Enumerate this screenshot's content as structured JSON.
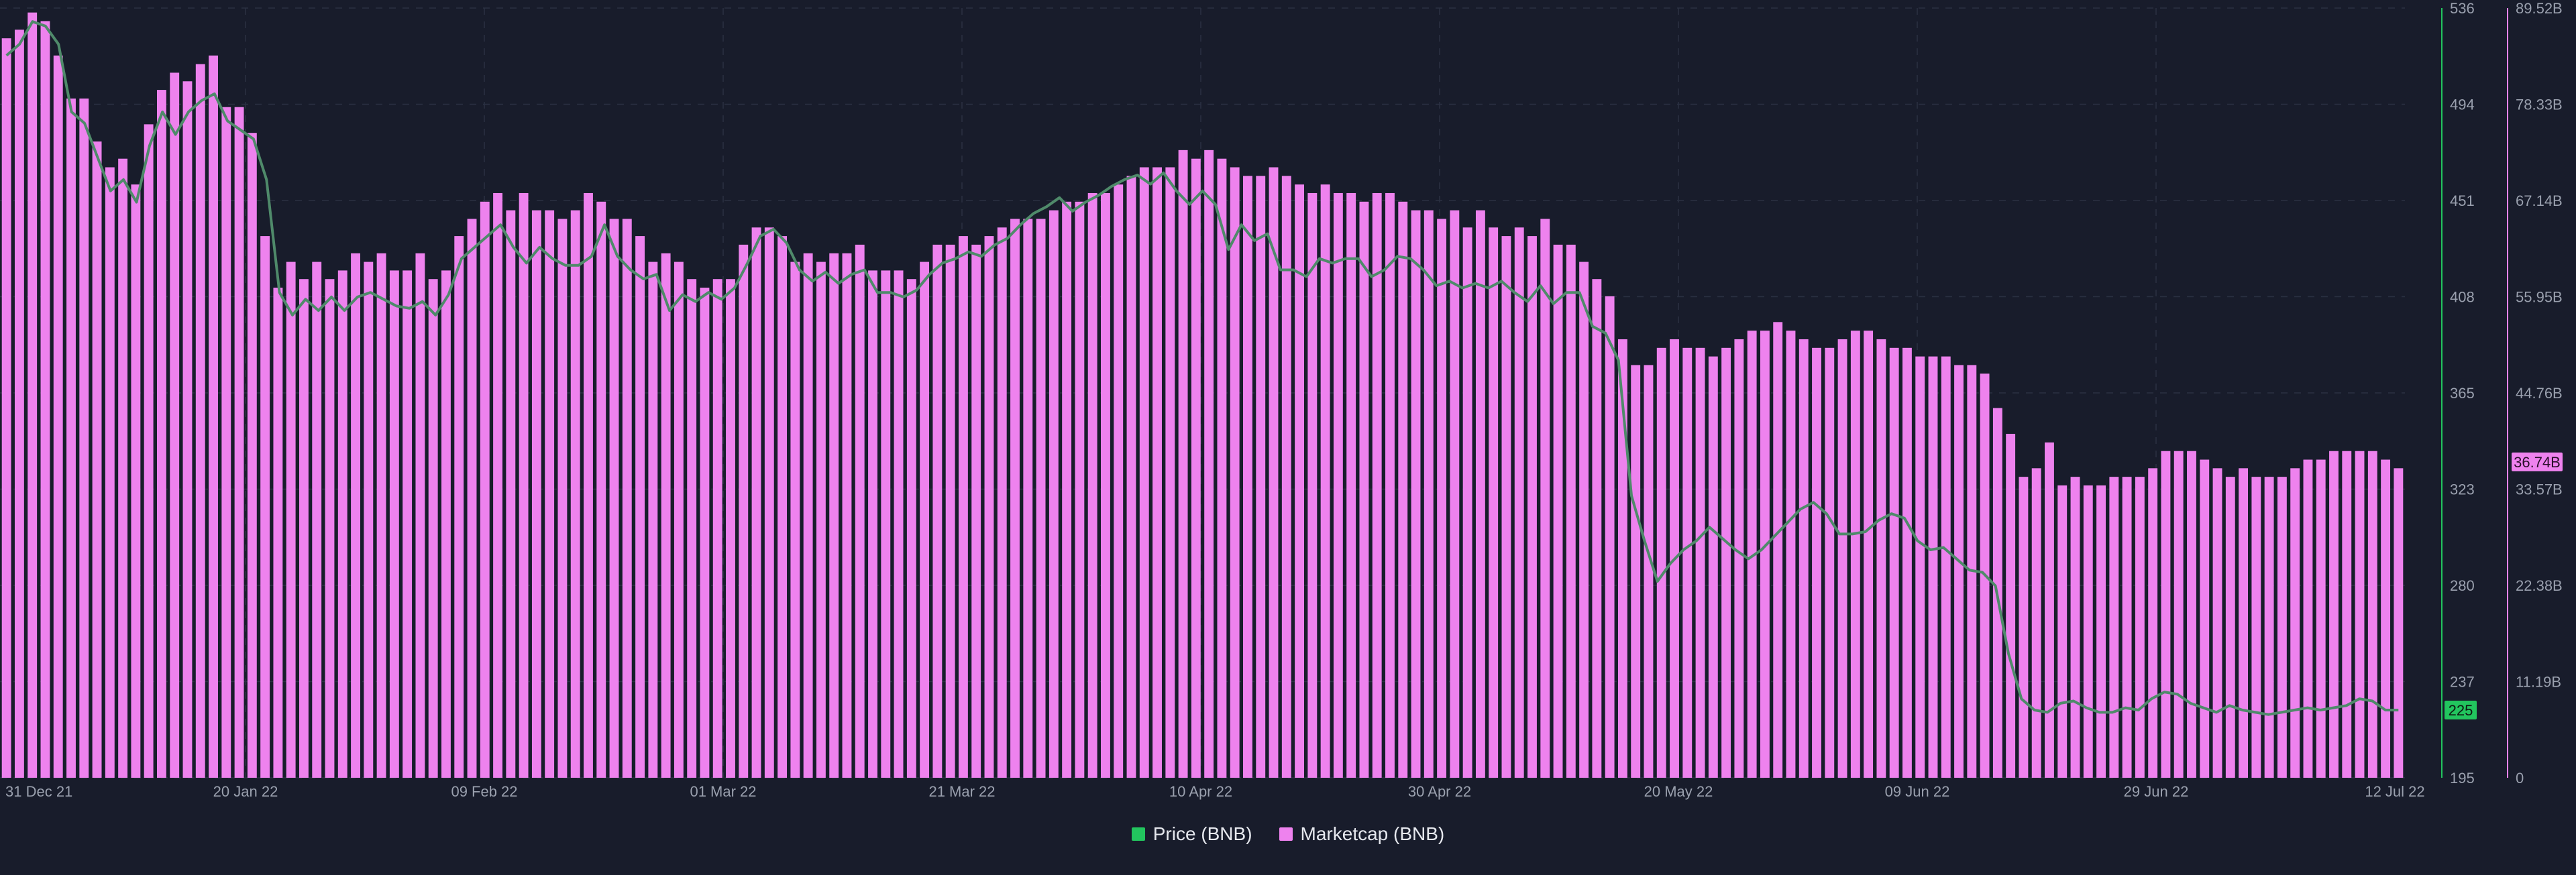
{
  "colors": {
    "background": "#181c2b",
    "bar": "#ee82ee",
    "line": "#4f8a6a",
    "price_axis": "#22c55e",
    "cap_axis": "#ee82ee",
    "grid": "#2a3042",
    "text": "#9aa0ae"
  },
  "legend": [
    {
      "label": "Price (BNB)",
      "color": "#22c55e"
    },
    {
      "label": "Marketcap (BNB)",
      "color": "#ee82ee"
    }
  ],
  "chart_data": {
    "type": "bar",
    "x_ticks": [
      "31 Dec 21",
      "20 Jan 22",
      "09 Feb 22",
      "01 Mar 22",
      "21 Mar 22",
      "10 Apr 22",
      "30 Apr 22",
      "20 May 22",
      "09 Jun 22",
      "29 Jun 22",
      "12 Jul 22"
    ],
    "price_axis": {
      "ticks": [
        "536",
        "494",
        "451",
        "408",
        "365",
        "323",
        "280",
        "237",
        "195"
      ],
      "ylim": [
        195,
        536
      ],
      "current_label": "225",
      "current_value": 225
    },
    "cap_axis": {
      "ticks": [
        "89.52B",
        "78.33B",
        "67.14B",
        "55.95B",
        "44.76B",
        "33.57B",
        "22.38B",
        "11.19B",
        "0"
      ],
      "ylim": [
        0,
        89.52
      ],
      "current_label": "36.74B",
      "current_value": 36.74
    },
    "series": [
      {
        "name": "Marketcap (BNB)",
        "kind": "bar",
        "axis": "cap",
        "values": [
          86,
          87,
          89,
          88,
          84,
          79,
          79,
          74,
          71,
          72,
          69,
          76,
          80,
          82,
          81,
          83,
          84,
          78,
          78,
          75,
          63,
          57,
          60,
          58,
          60,
          58,
          59,
          61,
          60,
          61,
          59,
          59,
          61,
          58,
          59,
          63,
          65,
          67,
          68,
          66,
          68,
          66,
          66,
          65,
          66,
          68,
          67,
          65,
          65,
          63,
          60,
          61,
          60,
          58,
          57,
          58,
          58,
          62,
          64,
          64,
          63,
          60,
          61,
          60,
          61,
          61,
          62,
          59,
          59,
          59,
          58,
          60,
          62,
          62,
          63,
          62,
          63,
          64,
          65,
          65,
          65,
          66,
          67,
          67,
          68,
          68,
          69,
          70,
          71,
          71,
          71,
          73,
          72,
          73,
          72,
          71,
          70,
          70,
          71,
          70,
          69,
          68,
          69,
          68,
          68,
          67,
          68,
          68,
          67,
          66,
          66,
          65,
          66,
          64,
          66,
          64,
          63,
          64,
          63,
          65,
          62,
          62,
          60,
          58,
          56,
          51,
          48,
          48,
          50,
          51,
          50,
          50,
          49,
          50,
          51,
          52,
          52,
          53,
          52,
          51,
          50,
          50,
          51,
          52,
          52,
          51,
          50,
          50,
          49,
          49,
          49,
          48,
          48,
          47,
          43,
          40,
          35,
          36,
          39,
          34,
          35,
          34,
          34,
          35,
          35,
          35,
          36,
          38,
          38,
          38,
          37,
          36,
          35,
          36,
          35,
          35,
          35,
          36,
          37,
          37,
          38,
          38,
          38,
          38,
          37,
          36
        ],
        "last": 36.74
      },
      {
        "name": "Price (BNB)",
        "kind": "line",
        "axis": "price",
        "values": [
          515,
          520,
          530,
          528,
          520,
          490,
          485,
          470,
          455,
          460,
          450,
          475,
          490,
          480,
          490,
          495,
          498,
          486,
          482,
          478,
          460,
          410,
          400,
          407,
          402,
          408,
          402,
          408,
          410,
          407,
          404,
          403,
          406,
          400,
          409,
          425,
          430,
          435,
          440,
          430,
          423,
          430,
          425,
          422,
          422,
          426,
          440,
          426,
          420,
          416,
          418,
          402,
          409,
          406,
          410,
          407,
          412,
          423,
          435,
          438,
          432,
          420,
          415,
          419,
          414,
          418,
          420,
          410,
          410,
          408,
          411,
          418,
          423,
          425,
          428,
          426,
          431,
          434,
          440,
          445,
          448,
          452,
          446,
          450,
          453,
          457,
          460,
          462,
          458,
          463,
          455,
          449,
          455,
          449,
          429,
          440,
          433,
          436,
          420,
          420,
          417,
          425,
          423,
          425,
          425,
          417,
          420,
          426,
          425,
          420,
          413,
          415,
          412,
          414,
          412,
          415,
          410,
          406,
          413,
          405,
          410,
          410,
          395,
          392,
          380,
          320,
          300,
          282,
          290,
          296,
          300,
          306,
          301,
          296,
          292,
          296,
          302,
          308,
          314,
          317,
          312,
          303,
          303,
          304,
          309,
          312,
          310,
          300,
          296,
          297,
          292,
          287,
          286,
          280,
          250,
          230,
          225,
          224,
          228,
          229,
          226,
          224,
          224,
          226,
          225,
          230,
          233,
          232,
          228,
          226,
          224,
          227,
          225,
          224,
          223,
          224,
          225,
          226,
          225,
          226,
          227,
          230,
          229,
          225,
          225
        ],
        "last": 225
      }
    ]
  }
}
